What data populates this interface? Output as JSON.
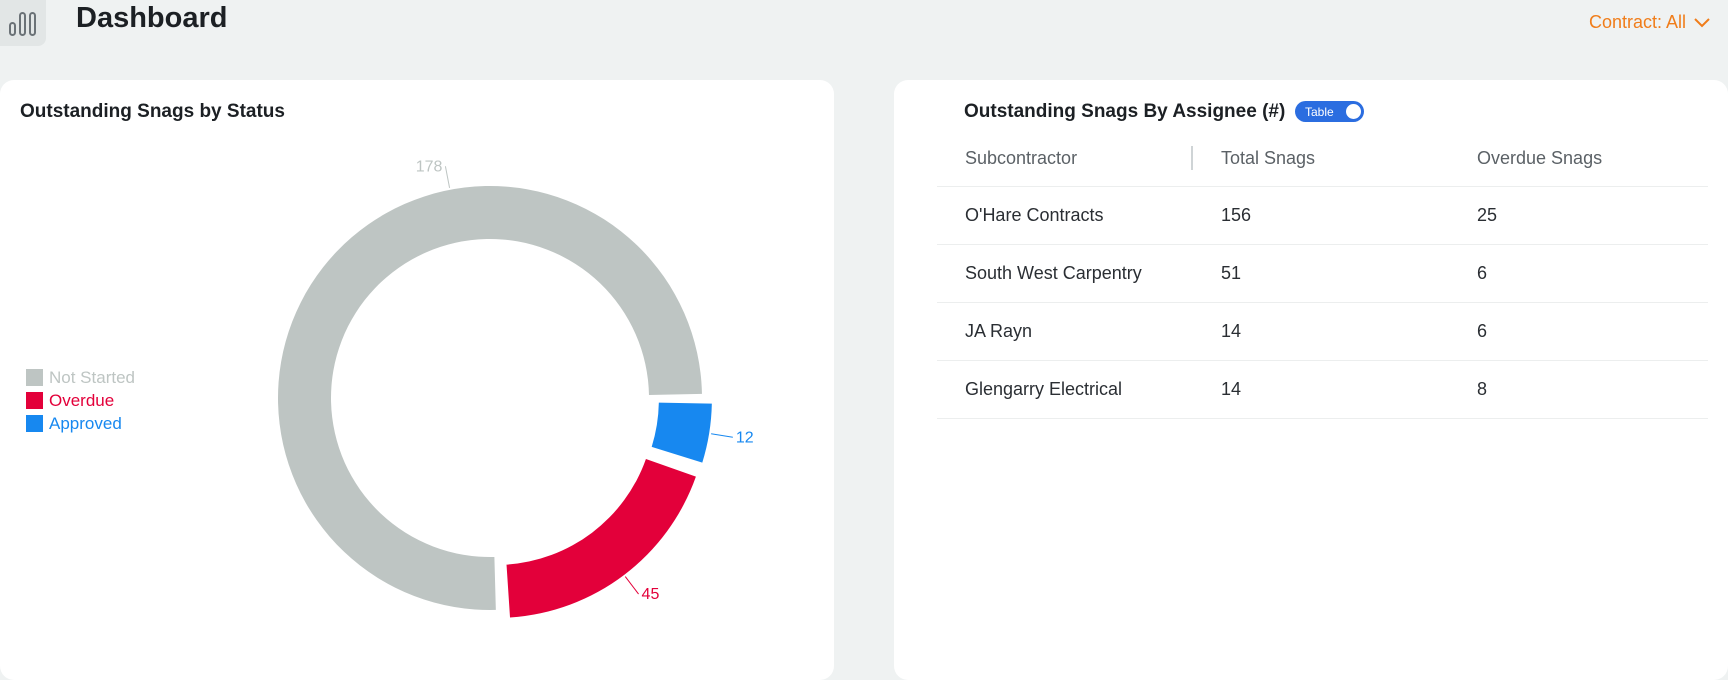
{
  "header": {
    "title": "Dashboard",
    "contract_filter": "Contract: All"
  },
  "status_card": {
    "title": "Outstanding Snags by Status",
    "legend": [
      {
        "label": "Not Started",
        "color": "#bec5c3"
      },
      {
        "label": "Overdue",
        "color": "#e3003a"
      },
      {
        "label": "Approved",
        "color": "#1788f0"
      }
    ]
  },
  "assignee_card": {
    "title": "Outstanding Snags By Assignee (#)",
    "toggle_label": "Table",
    "columns": [
      "Subcontractor",
      "Total Snags",
      "Overdue Snags"
    ],
    "rows": [
      {
        "subcontractor": "O'Hare Contracts",
        "total": "156",
        "overdue": "25"
      },
      {
        "subcontractor": "South West Carpentry",
        "total": "51",
        "overdue": "6"
      },
      {
        "subcontractor": "JA Rayn",
        "total": "14",
        "overdue": "6"
      },
      {
        "subcontractor": "Glengarry Electrical",
        "total": "14",
        "overdue": "8"
      }
    ]
  },
  "chart_data": {
    "type": "pie",
    "variant": "donut",
    "title": "Outstanding Snags by Status",
    "categories": [
      "Not Started",
      "Overdue",
      "Approved"
    ],
    "values": [
      178,
      45,
      12
    ],
    "colors": [
      "#bec5c3",
      "#e3003a",
      "#1788f0"
    ],
    "legend": "left"
  }
}
